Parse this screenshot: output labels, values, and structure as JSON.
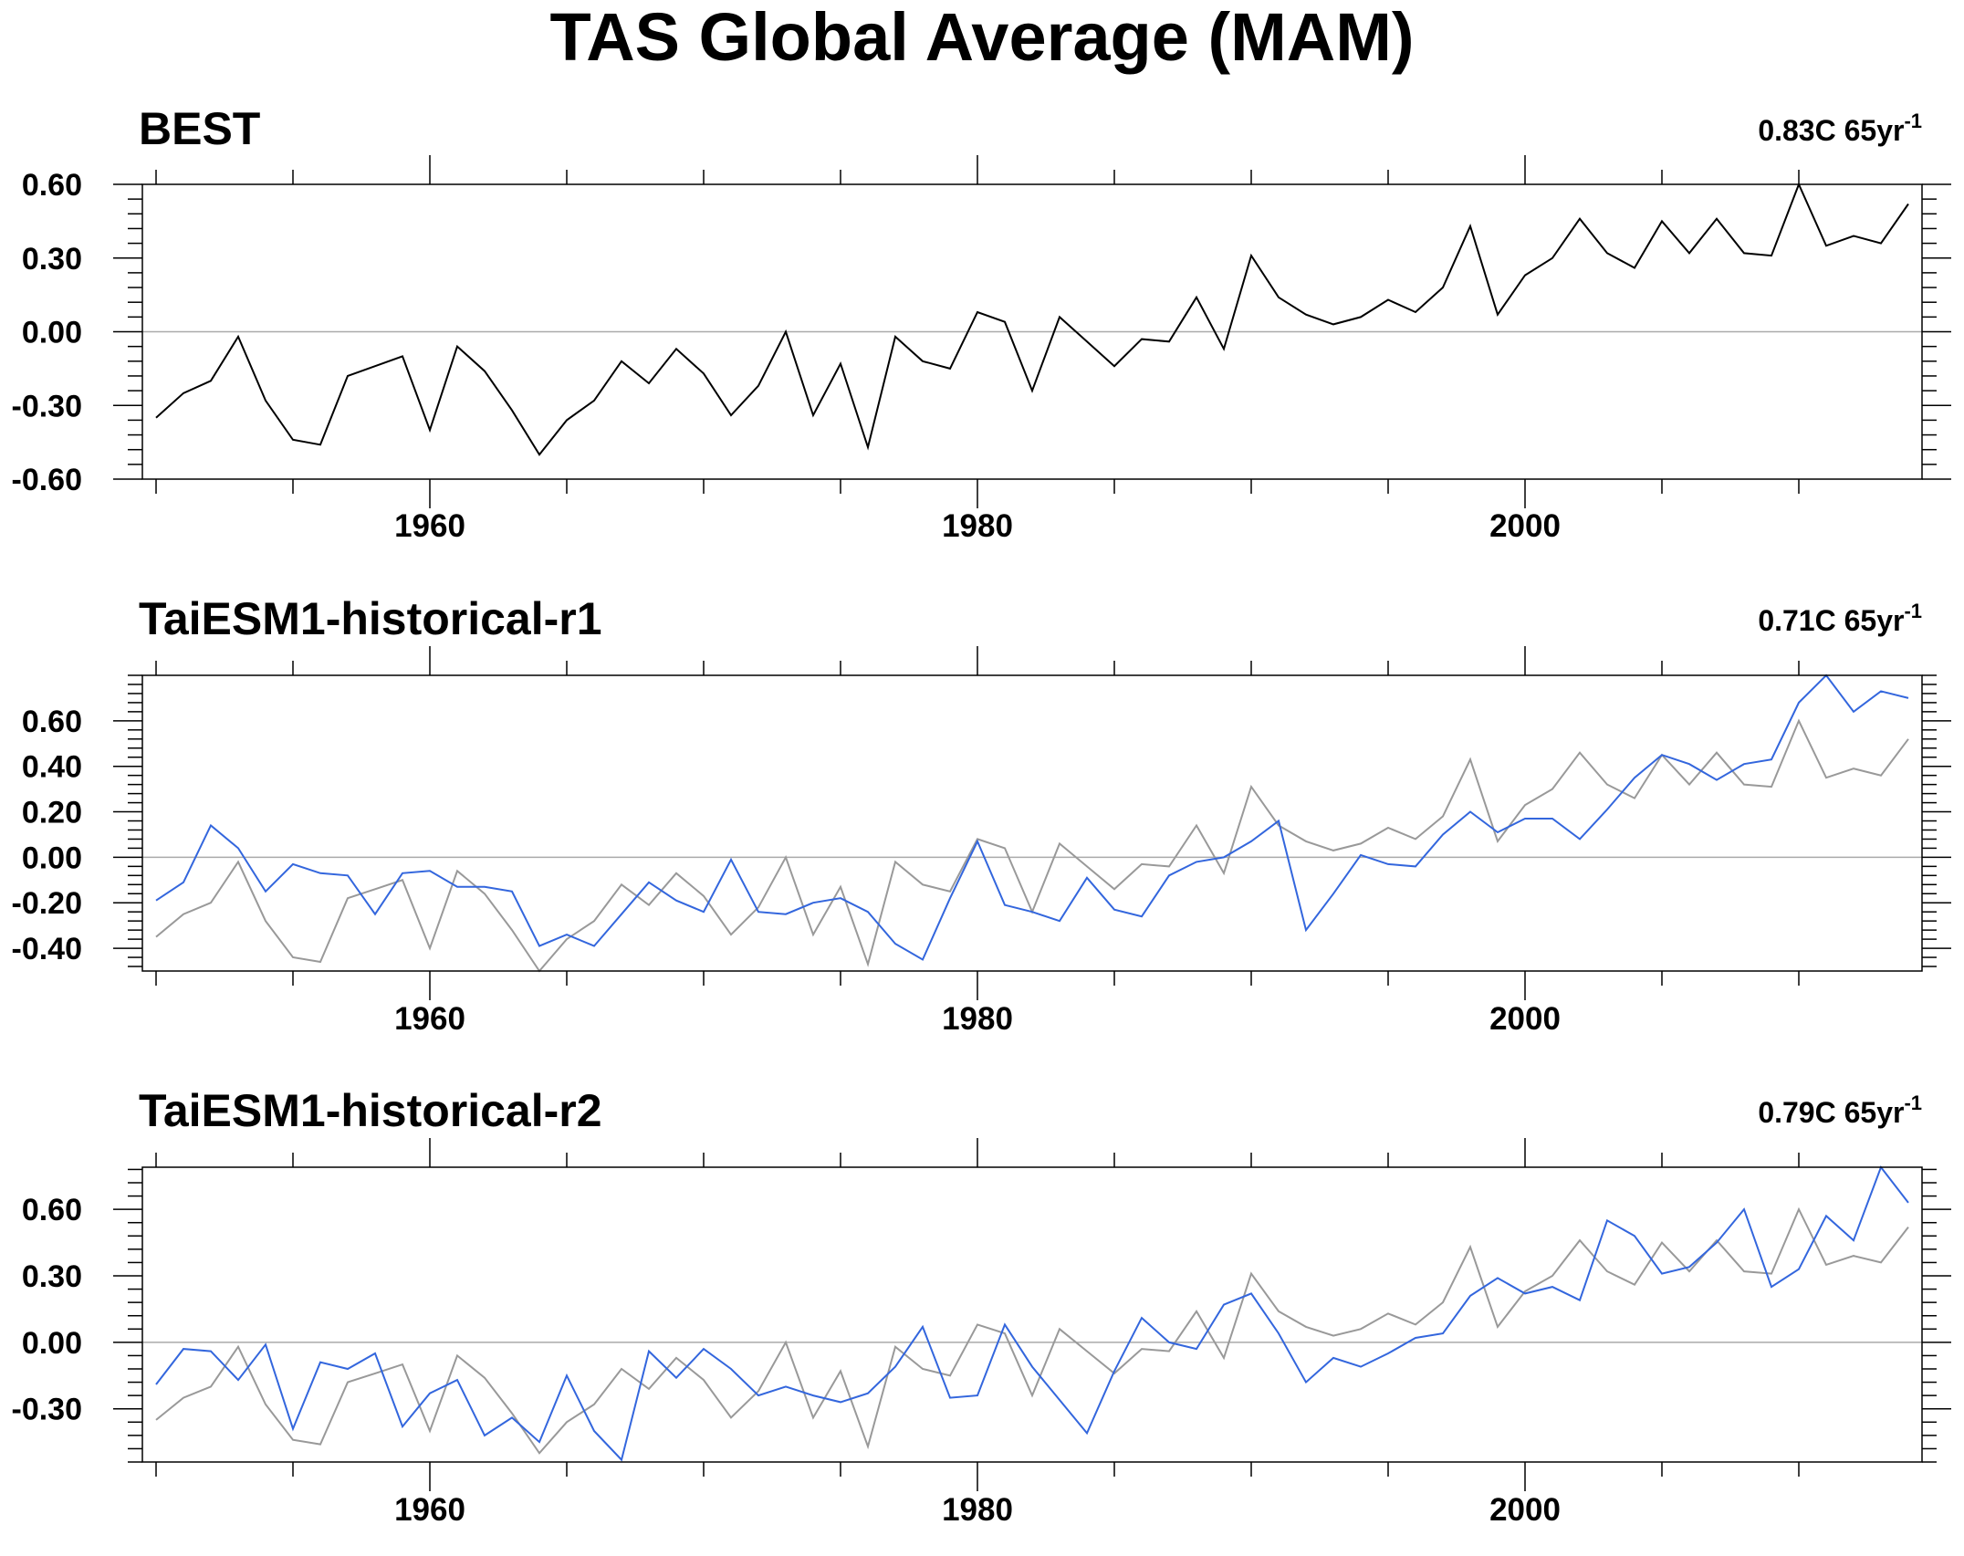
{
  "page_title": "TAS Global Average (MAM)",
  "chart_data": [
    {
      "type": "line",
      "title": "BEST",
      "trend_value": "0.83C 65yr",
      "trend_exp": "-1",
      "x_start": 1950,
      "xlim": [
        1949.5,
        2014.5
      ],
      "x_ticks": [
        "1960",
        "1980",
        "2000"
      ],
      "y_ticks": [
        "0.60",
        "0.30",
        "0.00",
        "-0.30",
        "-0.60"
      ],
      "ylim": [
        -0.6,
        0.6
      ],
      "series": [
        {
          "color": "#000000",
          "values": [
            -0.35,
            -0.25,
            -0.2,
            -0.02,
            -0.28,
            -0.44,
            -0.46,
            -0.18,
            -0.14,
            -0.1,
            -0.4,
            -0.06,
            -0.16,
            -0.32,
            -0.5,
            -0.36,
            -0.28,
            -0.12,
            -0.21,
            -0.07,
            -0.17,
            -0.34,
            -0.22,
            0.0,
            -0.34,
            -0.13,
            -0.47,
            -0.02,
            -0.12,
            -0.15,
            0.08,
            0.04,
            -0.24,
            0.06,
            -0.04,
            -0.14,
            -0.03,
            -0.04,
            0.14,
            -0.07,
            0.31,
            0.14,
            0.07,
            0.03,
            0.06,
            0.13,
            0.08,
            0.18,
            0.43,
            0.07,
            0.23,
            0.3,
            0.46,
            0.32,
            0.26,
            0.45,
            0.32,
            0.46,
            0.32,
            0.31,
            0.6,
            0.35,
            0.39,
            0.36,
            0.52
          ]
        }
      ]
    },
    {
      "type": "line",
      "title": "TaiESM1-historical-r1",
      "trend_value": "0.71C 65yr",
      "trend_exp": "-1",
      "x_start": 1950,
      "xlim": [
        1949.5,
        2014.5
      ],
      "x_ticks": [
        "1960",
        "1980",
        "2000"
      ],
      "y_ticks": [
        "0.60",
        "0.40",
        "0.20",
        "0.00",
        "-0.20",
        "-0.40"
      ],
      "ylim": [
        -0.5,
        0.8
      ],
      "series": [
        {
          "color": "#999999",
          "values": [
            -0.35,
            -0.25,
            -0.2,
            -0.02,
            -0.28,
            -0.44,
            -0.46,
            -0.18,
            -0.14,
            -0.1,
            -0.4,
            -0.06,
            -0.16,
            -0.32,
            -0.5,
            -0.36,
            -0.28,
            -0.12,
            -0.21,
            -0.07,
            -0.17,
            -0.34,
            -0.22,
            0.0,
            -0.34,
            -0.13,
            -0.47,
            -0.02,
            -0.12,
            -0.15,
            0.08,
            0.04,
            -0.24,
            0.06,
            -0.04,
            -0.14,
            -0.03,
            -0.04,
            0.14,
            -0.07,
            0.31,
            0.14,
            0.07,
            0.03,
            0.06,
            0.13,
            0.08,
            0.18,
            0.43,
            0.07,
            0.23,
            0.3,
            0.46,
            0.32,
            0.26,
            0.45,
            0.32,
            0.46,
            0.32,
            0.31,
            0.6,
            0.35,
            0.39,
            0.36,
            0.52
          ]
        },
        {
          "color": "#3366dd",
          "values": [
            -0.19,
            -0.11,
            0.14,
            0.04,
            -0.15,
            -0.03,
            -0.07,
            -0.08,
            -0.25,
            -0.07,
            -0.06,
            -0.13,
            -0.13,
            -0.15,
            -0.39,
            -0.34,
            -0.39,
            -0.25,
            -0.11,
            -0.19,
            -0.24,
            -0.01,
            -0.24,
            -0.25,
            -0.2,
            -0.18,
            -0.24,
            -0.38,
            -0.45,
            -0.18,
            0.07,
            -0.21,
            -0.24,
            -0.28,
            -0.09,
            -0.23,
            -0.26,
            -0.08,
            -0.02,
            0.0,
            0.07,
            0.16,
            -0.32,
            -0.16,
            0.01,
            -0.03,
            -0.04,
            0.1,
            0.2,
            0.11,
            0.17,
            0.17,
            0.08,
            0.21,
            0.35,
            0.45,
            0.41,
            0.34,
            0.41,
            0.43,
            0.68,
            0.8,
            0.64,
            0.73,
            0.7
          ]
        }
      ]
    },
    {
      "type": "line",
      "title": "TaiESM1-historical-r2",
      "trend_value": "0.79C 65yr",
      "trend_exp": "-1",
      "x_start": 1950,
      "xlim": [
        1949.5,
        2014.5
      ],
      "x_ticks": [
        "1960",
        "1980",
        "2000"
      ],
      "y_ticks": [
        "0.60",
        "0.30",
        "0.00",
        "-0.30"
      ],
      "ylim": [
        -0.54,
        0.79
      ],
      "series": [
        {
          "color": "#999999",
          "values": [
            -0.35,
            -0.25,
            -0.2,
            -0.02,
            -0.28,
            -0.44,
            -0.46,
            -0.18,
            -0.14,
            -0.1,
            -0.4,
            -0.06,
            -0.16,
            -0.32,
            -0.5,
            -0.36,
            -0.28,
            -0.12,
            -0.21,
            -0.07,
            -0.17,
            -0.34,
            -0.22,
            0.0,
            -0.34,
            -0.13,
            -0.47,
            -0.02,
            -0.12,
            -0.15,
            0.08,
            0.04,
            -0.24,
            0.06,
            -0.04,
            -0.14,
            -0.03,
            -0.04,
            0.14,
            -0.07,
            0.31,
            0.14,
            0.07,
            0.03,
            0.06,
            0.13,
            0.08,
            0.18,
            0.43,
            0.07,
            0.23,
            0.3,
            0.46,
            0.32,
            0.26,
            0.45,
            0.32,
            0.46,
            0.32,
            0.31,
            0.6,
            0.35,
            0.39,
            0.36,
            0.52
          ]
        },
        {
          "color": "#3366dd",
          "values": [
            -0.19,
            -0.03,
            -0.04,
            -0.17,
            -0.01,
            -0.39,
            -0.09,
            -0.12,
            -0.05,
            -0.38,
            -0.23,
            -0.17,
            -0.42,
            -0.34,
            -0.45,
            -0.15,
            -0.4,
            -0.53,
            -0.04,
            -0.16,
            -0.03,
            -0.12,
            -0.24,
            -0.2,
            -0.24,
            -0.27,
            -0.23,
            -0.11,
            0.07,
            -0.25,
            -0.24,
            0.08,
            -0.11,
            -0.26,
            -0.41,
            -0.13,
            0.11,
            0.0,
            -0.03,
            0.17,
            0.22,
            0.04,
            -0.18,
            -0.07,
            -0.11,
            -0.05,
            0.02,
            0.04,
            0.21,
            0.29,
            0.22,
            0.25,
            0.19,
            0.55,
            0.48,
            0.31,
            0.34,
            0.45,
            0.6,
            0.25,
            0.33,
            0.57,
            0.46,
            0.79,
            0.63
          ]
        }
      ]
    }
  ]
}
